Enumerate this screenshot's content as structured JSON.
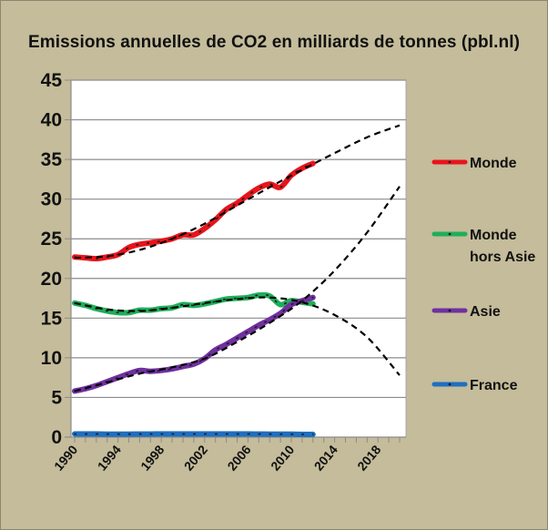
{
  "chart_data": {
    "type": "line",
    "title": "Emissions  annuelles de CO2 en milliards de tonnes (pbl.nl)",
    "xlabel": "",
    "ylabel": "",
    "xlim": [
      1990,
      2020.6
    ],
    "ylim": [
      0,
      45
    ],
    "yticks": [
      0,
      5,
      10,
      15,
      20,
      25,
      30,
      35,
      40,
      45
    ],
    "xtick_labels": [
      "1990",
      "1994",
      "1998",
      "2002",
      "2006",
      "2010",
      "2014",
      "2018"
    ],
    "grid": true,
    "legend_position": "right",
    "series": [
      {
        "name": "Monde",
        "color": "#e8141c",
        "x": [
          1990,
          1991,
          1992,
          1993,
          1994,
          1995,
          1996,
          1997,
          1998,
          1999,
          2000,
          2001,
          2002,
          2003,
          2004,
          2005,
          2006,
          2007,
          2008,
          2009,
          2010,
          2011,
          2012
        ],
        "values": [
          22.7,
          22.6,
          22.5,
          22.7,
          23.0,
          23.9,
          24.3,
          24.5,
          24.7,
          25.0,
          25.5,
          25.5,
          26.3,
          27.4,
          28.7,
          29.5,
          30.5,
          31.4,
          31.9,
          31.5,
          33.0,
          33.9,
          34.5
        ]
      },
      {
        "name": "Monde hors Asie",
        "color": "#1fae5a",
        "x": [
          1990,
          1991,
          1992,
          1993,
          1994,
          1995,
          1996,
          1997,
          1998,
          1999,
          2000,
          2001,
          2002,
          2003,
          2004,
          2005,
          2006,
          2007,
          2008,
          2009,
          2010,
          2011,
          2012
        ],
        "values": [
          16.9,
          16.6,
          16.2,
          15.9,
          15.7,
          15.7,
          16.0,
          16.0,
          16.2,
          16.3,
          16.7,
          16.6,
          16.8,
          17.1,
          17.4,
          17.5,
          17.6,
          17.9,
          17.8,
          16.7,
          17.2,
          17.0,
          16.8
        ]
      },
      {
        "name": "Asie",
        "color": "#7030a0",
        "x": [
          1990,
          1991,
          1992,
          1993,
          1994,
          1995,
          1996,
          1997,
          1998,
          1999,
          2000,
          2001,
          2002,
          2003,
          2004,
          2005,
          2006,
          2007,
          2008,
          2009,
          2010,
          2011,
          2012
        ],
        "values": [
          5.8,
          6.1,
          6.5,
          7.0,
          7.5,
          8.0,
          8.4,
          8.3,
          8.4,
          8.6,
          8.9,
          9.2,
          9.9,
          11.0,
          11.7,
          12.5,
          13.3,
          14.1,
          14.8,
          15.6,
          16.7,
          17.2,
          17.6
        ]
      },
      {
        "name": "France",
        "color": "#1f6fbf",
        "x": [
          1990,
          1991,
          1992,
          1993,
          1994,
          1995,
          1996,
          1997,
          1998,
          1999,
          2000,
          2001,
          2002,
          2003,
          2004,
          2005,
          2006,
          2007,
          2008,
          2009,
          2010,
          2011,
          2012
        ],
        "values": [
          0.4,
          0.4,
          0.4,
          0.38,
          0.38,
          0.38,
          0.39,
          0.39,
          0.4,
          0.4,
          0.4,
          0.4,
          0.4,
          0.4,
          0.4,
          0.4,
          0.4,
          0.39,
          0.38,
          0.37,
          0.37,
          0.35,
          0.35
        ]
      }
    ],
    "trend_lines": [
      {
        "name": "Monde (tendance)",
        "style": "dashed",
        "color": "#000000",
        "x": [
          1990,
          1993,
          1996,
          1999,
          2002,
          2005,
          2008,
          2011,
          2014,
          2017,
          2020
        ],
        "values": [
          22.6,
          22.8,
          23.6,
          25.0,
          26.9,
          29.2,
          31.5,
          33.7,
          35.8,
          37.8,
          39.3
        ]
      },
      {
        "name": "Monde hors Asie (tendance)",
        "style": "dashed",
        "color": "#000000",
        "x": [
          1990,
          1993,
          1996,
          1999,
          2002,
          2005,
          2008,
          2011,
          2014,
          2017,
          2020
        ],
        "values": [
          16.9,
          16.1,
          15.9,
          16.3,
          16.9,
          17.4,
          17.6,
          17.0,
          15.4,
          12.6,
          7.8
        ]
      },
      {
        "name": "Asie (tendance)",
        "style": "dashed",
        "color": "#000000",
        "x": [
          1990,
          1993,
          1996,
          1999,
          2002,
          2005,
          2008,
          2011,
          2014,
          2017,
          2020
        ],
        "values": [
          5.8,
          6.9,
          8.0,
          8.8,
          9.9,
          12.0,
          14.4,
          17.2,
          21.0,
          25.8,
          31.6
        ]
      }
    ]
  }
}
